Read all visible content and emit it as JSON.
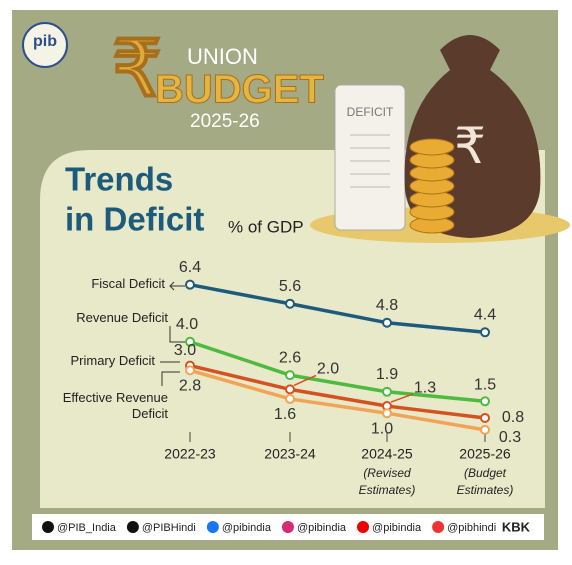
{
  "header": {
    "logo": "pib",
    "union": "UNION",
    "budget": "BUDGET",
    "year": "2025-26",
    "paper": "DEFICIT"
  },
  "chart_data": {
    "type": "line",
    "title": "Trends",
    "title_line2": "in Deficit",
    "subtitle": "% of GDP",
    "categories": [
      "2022-23",
      "2023-24",
      "2024-25",
      "2025-26"
    ],
    "category_notes": [
      null,
      null,
      [
        "(Revised",
        "Estimates)"
      ],
      [
        "(Budget",
        "Estimates)"
      ]
    ],
    "series": [
      {
        "name": "Fiscal Deficit",
        "color": "#1d5b7c",
        "values": [
          6.4,
          5.6,
          4.8,
          4.4
        ],
        "value_labels": [
          "6.4",
          "5.6",
          "4.8",
          "4.4"
        ]
      },
      {
        "name": "Revenue Deficit",
        "color": "#4dbb3f",
        "values": [
          4.0,
          2.6,
          1.9,
          1.5
        ],
        "value_labels": [
          "4.0",
          "2.6",
          "1.9",
          "1.5"
        ]
      },
      {
        "name": "Primary Deficit",
        "color": "#d4521f",
        "values": [
          3.0,
          2.0,
          1.3,
          0.8
        ],
        "value_labels": [
          "3.0",
          "2.0",
          "1.3",
          "0.8"
        ]
      },
      {
        "name": "Effective Revenue Deficit",
        "color": "#f2a355",
        "values": [
          2.8,
          1.6,
          1.0,
          0.3
        ],
        "value_labels": [
          "2.8",
          "1.6",
          "1.0",
          "0.3"
        ]
      }
    ]
  },
  "footer": {
    "handles": [
      "@PIB_India",
      "@PIBHindi",
      "@pibindia",
      "@pibindia",
      "@pibindia",
      "@pibhindi"
    ],
    "credit": "KBK"
  }
}
